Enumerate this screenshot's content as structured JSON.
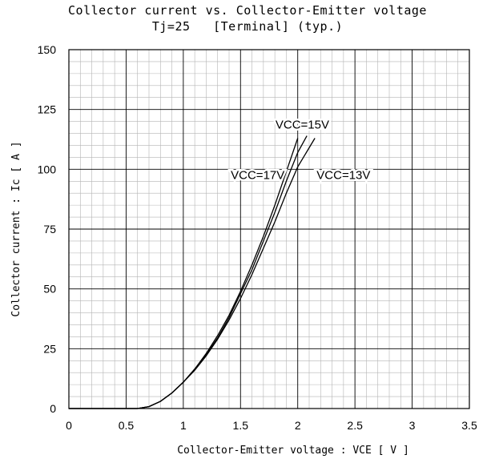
{
  "chart_data": {
    "type": "line",
    "title": "Collector current vs. Collector-Emitter voltage",
    "subtitle": "Tj=25   [Terminal] (typ.)",
    "xlabel": "Collector-Emitter voltage : VCE [ V ]",
    "ylabel": "Collector current : Ic [ A ]",
    "xlim": [
      0,
      3.5
    ],
    "ylim": [
      0,
      150
    ],
    "x_ticks": [
      "0",
      "0.5",
      "1",
      "1.5",
      "2",
      "2.5",
      "3",
      "3.5"
    ],
    "y_ticks": [
      "0",
      "25",
      "50",
      "75",
      "100",
      "125",
      "150"
    ],
    "grid": true,
    "series": [
      {
        "name": "VCC=17V",
        "points": [
          [
            0.6,
            0
          ],
          [
            0.7,
            0.8
          ],
          [
            0.8,
            3
          ],
          [
            0.9,
            6.5
          ],
          [
            1.0,
            11
          ],
          [
            1.1,
            16.5
          ],
          [
            1.2,
            23
          ],
          [
            1.3,
            30.5
          ],
          [
            1.4,
            39
          ],
          [
            1.5,
            49
          ],
          [
            1.6,
            60
          ],
          [
            1.7,
            72
          ],
          [
            1.8,
            85
          ],
          [
            1.9,
            99
          ],
          [
            2.0,
            113
          ]
        ]
      },
      {
        "name": "VCC=15V",
        "points": [
          [
            0.6,
            0
          ],
          [
            0.7,
            0.8
          ],
          [
            0.8,
            3
          ],
          [
            0.9,
            6.5
          ],
          [
            1.0,
            11
          ],
          [
            1.1,
            16.5
          ],
          [
            1.2,
            22.5
          ],
          [
            1.3,
            29.5
          ],
          [
            1.4,
            38
          ],
          [
            1.5,
            48
          ],
          [
            1.6,
            58
          ],
          [
            1.7,
            70
          ],
          [
            1.8,
            82
          ],
          [
            1.9,
            95
          ],
          [
            2.0,
            107
          ],
          [
            2.08,
            114
          ]
        ]
      },
      {
        "name": "VCC=13V",
        "points": [
          [
            0.6,
            0
          ],
          [
            0.7,
            0.8
          ],
          [
            0.8,
            3
          ],
          [
            0.9,
            6.5
          ],
          [
            1.0,
            11
          ],
          [
            1.1,
            16
          ],
          [
            1.2,
            22
          ],
          [
            1.3,
            29
          ],
          [
            1.4,
            37
          ],
          [
            1.5,
            46
          ],
          [
            1.6,
            56
          ],
          [
            1.7,
            67
          ],
          [
            1.8,
            78
          ],
          [
            1.9,
            90
          ],
          [
            2.0,
            101
          ],
          [
            2.15,
            113
          ]
        ]
      }
    ],
    "labels": [
      {
        "text": "VCC=15V",
        "x": 2.04,
        "y": 117,
        "anchor": "middle"
      },
      {
        "text": "VCC=17V",
        "x": 1.65,
        "y": 96,
        "anchor": "middle"
      },
      {
        "text": "VCC=13V",
        "x": 2.4,
        "y": 96,
        "anchor": "middle"
      }
    ]
  }
}
